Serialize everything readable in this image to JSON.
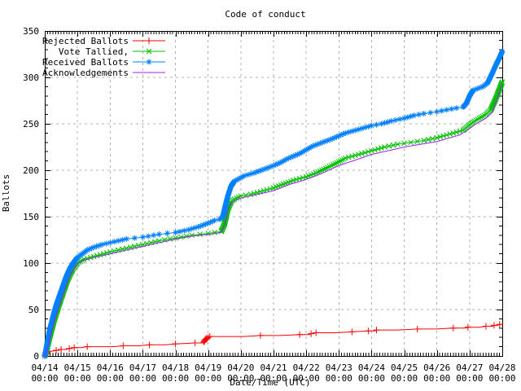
{
  "chart_data": {
    "type": "line",
    "title": "Code of conduct",
    "xlabel": "Date/Time (UTC)",
    "ylabel": "Ballots",
    "ylim": [
      0,
      350
    ],
    "y_major_step": 50,
    "y_minor_step": 10,
    "x_days": 14,
    "x_minor_per_day": 12,
    "grid": "dashed gray at day and 50-ballot intervals",
    "legend_position": "top-left inside plot",
    "x_tick_time": "00:00",
    "x_tick_dates": [
      "04/14",
      "04/15",
      "04/16",
      "04/17",
      "04/18",
      "04/19",
      "04/20",
      "04/21",
      "04/22",
      "04/23",
      "04/24",
      "04/25",
      "04/26",
      "04/27",
      "04/28"
    ],
    "y_tick_values": [
      0,
      50,
      100,
      150,
      200,
      250,
      300,
      350
    ],
    "series": [
      {
        "name": "Rejected Ballots",
        "color": "#ff0000",
        "marker": "plus",
        "points": [
          [
            0,
            0
          ],
          [
            0.02,
            1
          ],
          [
            0.05,
            3
          ],
          [
            0.1,
            5
          ],
          [
            0.2,
            5
          ],
          [
            0.35,
            6
          ],
          [
            0.5,
            7
          ],
          [
            0.65,
            7
          ],
          [
            0.75,
            8
          ],
          [
            0.9,
            9
          ],
          [
            1.1,
            9
          ],
          [
            1.3,
            10
          ],
          [
            1.7,
            10
          ],
          [
            2.1,
            10
          ],
          [
            2.4,
            11
          ],
          [
            2.9,
            11
          ],
          [
            3.2,
            12
          ],
          [
            3.7,
            12
          ],
          [
            4.0,
            13
          ],
          [
            4.6,
            14
          ],
          [
            4.85,
            14
          ],
          [
            4.9,
            17
          ],
          [
            4.95,
            19
          ],
          [
            5.05,
            21
          ],
          [
            5.6,
            21
          ],
          [
            6.1,
            21
          ],
          [
            6.6,
            22
          ],
          [
            7.2,
            22
          ],
          [
            7.8,
            23
          ],
          [
            8.1,
            23
          ],
          [
            8.15,
            24
          ],
          [
            8.3,
            25
          ],
          [
            8.9,
            25
          ],
          [
            9.4,
            26
          ],
          [
            9.9,
            27
          ],
          [
            10.1,
            27
          ],
          [
            10.15,
            28
          ],
          [
            10.8,
            28
          ],
          [
            11.4,
            29
          ],
          [
            12.0,
            29
          ],
          [
            12.5,
            30
          ],
          [
            12.9,
            30
          ],
          [
            12.95,
            31
          ],
          [
            13.3,
            31
          ],
          [
            13.5,
            32
          ],
          [
            13.7,
            32
          ],
          [
            13.75,
            33
          ],
          [
            13.85,
            33
          ],
          [
            13.92,
            34
          ],
          [
            14,
            34
          ]
        ]
      },
      {
        "name": "Vote Tallied,",
        "color": "#00c000",
        "marker": "cross",
        "points": [
          [
            0,
            0
          ],
          [
            0.05,
            5
          ],
          [
            0.15,
            20
          ],
          [
            0.3,
            40
          ],
          [
            0.5,
            62
          ],
          [
            0.7,
            82
          ],
          [
            0.85,
            93
          ],
          [
            1.0,
            100
          ],
          [
            1.2,
            104
          ],
          [
            1.5,
            107
          ],
          [
            1.8,
            110
          ],
          [
            2.0,
            112
          ],
          [
            2.5,
            116
          ],
          [
            3.0,
            120
          ],
          [
            3.5,
            124
          ],
          [
            4.0,
            127
          ],
          [
            4.5,
            130
          ],
          [
            5.0,
            132
          ],
          [
            5.4,
            134
          ],
          [
            5.5,
            142
          ],
          [
            5.6,
            158
          ],
          [
            5.7,
            166
          ],
          [
            5.8,
            169
          ],
          [
            6.0,
            172
          ],
          [
            6.3,
            174
          ],
          [
            6.6,
            177
          ],
          [
            7.0,
            181
          ],
          [
            7.3,
            185
          ],
          [
            7.6,
            189
          ],
          [
            8.0,
            193
          ],
          [
            8.3,
            197
          ],
          [
            8.6,
            202
          ],
          [
            9.0,
            209
          ],
          [
            9.2,
            213
          ],
          [
            9.5,
            216
          ],
          [
            10.0,
            221
          ],
          [
            10.4,
            225
          ],
          [
            10.8,
            228
          ],
          [
            11.2,
            230
          ],
          [
            11.6,
            232
          ],
          [
            12.0,
            235
          ],
          [
            12.3,
            238
          ],
          [
            12.6,
            241
          ],
          [
            12.8,
            243
          ],
          [
            13.0,
            249
          ],
          [
            13.15,
            253
          ],
          [
            13.3,
            256
          ],
          [
            13.5,
            260
          ],
          [
            13.65,
            265
          ],
          [
            13.8,
            277
          ],
          [
            13.9,
            286
          ],
          [
            14,
            295
          ]
        ]
      },
      {
        "name": "Received Ballots",
        "color": "#0080ff",
        "marker": "star",
        "points": [
          [
            0,
            0
          ],
          [
            0.03,
            5
          ],
          [
            0.08,
            15
          ],
          [
            0.15,
            28
          ],
          [
            0.25,
            42
          ],
          [
            0.35,
            55
          ],
          [
            0.45,
            65
          ],
          [
            0.55,
            75
          ],
          [
            0.65,
            85
          ],
          [
            0.75,
            93
          ],
          [
            0.85,
            99
          ],
          [
            1.0,
            106
          ],
          [
            1.15,
            110
          ],
          [
            1.3,
            114
          ],
          [
            1.5,
            117
          ],
          [
            1.75,
            120
          ],
          [
            2.0,
            122
          ],
          [
            2.25,
            124
          ],
          [
            2.5,
            126
          ],
          [
            3.0,
            128
          ],
          [
            3.5,
            131
          ],
          [
            4.0,
            133
          ],
          [
            4.4,
            136
          ],
          [
            4.7,
            139
          ],
          [
            5.0,
            143
          ],
          [
            5.2,
            146
          ],
          [
            5.35,
            147
          ],
          [
            5.45,
            150
          ],
          [
            5.5,
            158
          ],
          [
            5.6,
            172
          ],
          [
            5.7,
            183
          ],
          [
            5.8,
            188
          ],
          [
            5.95,
            191
          ],
          [
            6.1,
            194
          ],
          [
            6.4,
            197
          ],
          [
            6.7,
            201
          ],
          [
            7.0,
            205
          ],
          [
            7.2,
            208
          ],
          [
            7.4,
            212
          ],
          [
            7.6,
            215
          ],
          [
            7.8,
            218
          ],
          [
            8.0,
            222
          ],
          [
            8.2,
            226
          ],
          [
            8.5,
            230
          ],
          [
            8.8,
            234
          ],
          [
            9.0,
            237
          ],
          [
            9.2,
            240
          ],
          [
            9.4,
            242
          ],
          [
            9.7,
            245
          ],
          [
            10.0,
            248
          ],
          [
            10.3,
            250
          ],
          [
            10.6,
            253
          ],
          [
            11.0,
            256
          ],
          [
            11.3,
            259
          ],
          [
            11.6,
            261
          ],
          [
            12.0,
            263
          ],
          [
            12.3,
            265
          ],
          [
            12.6,
            267
          ],
          [
            12.8,
            268
          ],
          [
            12.9,
            272
          ],
          [
            13.0,
            280
          ],
          [
            13.1,
            286
          ],
          [
            13.25,
            288
          ],
          [
            13.4,
            290
          ],
          [
            13.55,
            294
          ],
          [
            13.7,
            305
          ],
          [
            13.8,
            313
          ],
          [
            13.9,
            320
          ],
          [
            14,
            328
          ]
        ]
      },
      {
        "name": "Acknowledgements",
        "color": "#a020f0",
        "marker": "none",
        "points": [
          [
            0,
            0
          ],
          [
            0.05,
            4
          ],
          [
            0.15,
            18
          ],
          [
            0.3,
            38
          ],
          [
            0.5,
            60
          ],
          [
            0.7,
            80
          ],
          [
            0.85,
            91
          ],
          [
            1.0,
            99
          ],
          [
            1.2,
            103
          ],
          [
            1.5,
            106
          ],
          [
            2.0,
            110
          ],
          [
            2.5,
            114
          ],
          [
            3.0,
            118
          ],
          [
            3.5,
            122
          ],
          [
            4.0,
            126
          ],
          [
            4.5,
            129
          ],
          [
            5.0,
            131
          ],
          [
            5.4,
            133
          ],
          [
            5.5,
            141
          ],
          [
            5.6,
            157
          ],
          [
            5.7,
            164
          ],
          [
            5.8,
            167
          ],
          [
            6.0,
            170
          ],
          [
            6.5,
            174
          ],
          [
            7.0,
            178
          ],
          [
            7.5,
            185
          ],
          [
            8.0,
            190
          ],
          [
            8.5,
            197
          ],
          [
            9.0,
            205
          ],
          [
            9.5,
            211
          ],
          [
            10.0,
            217
          ],
          [
            10.5,
            221
          ],
          [
            11.0,
            225
          ],
          [
            11.5,
            228
          ],
          [
            12.0,
            231
          ],
          [
            12.4,
            235
          ],
          [
            12.7,
            238
          ],
          [
            13.0,
            245
          ],
          [
            13.2,
            250
          ],
          [
            13.5,
            256
          ],
          [
            13.7,
            263
          ],
          [
            13.85,
            278
          ],
          [
            14,
            293
          ]
        ]
      }
    ],
    "style": {
      "grid_color": "#b0b0b0",
      "border_color": "#000000",
      "background": "#ffffff"
    }
  }
}
